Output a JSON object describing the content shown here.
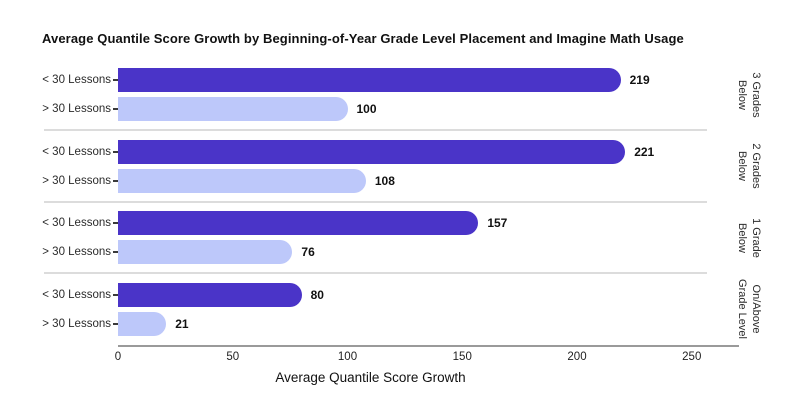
{
  "title": "Average Quantile Score Growth by Beginning-of-Year Grade Level Placement and Imagine Math Usage",
  "chart_data": {
    "type": "bar",
    "orientation": "horizontal",
    "title": "Average Quantile Score Growth by Beginning-of-Year Grade Level Placement and Imagine Math Usage",
    "xlabel": "Average Quantile Score Growth",
    "x_ticks": [
      "0",
      "50",
      "100",
      "150",
      "200",
      "250"
    ],
    "x_tick_values": [
      0,
      50,
      100,
      150,
      200,
      250
    ],
    "xlim": [
      0,
      270
    ],
    "grid": false,
    "legend": "none",
    "series": [
      {
        "name": "< 30 Lessons",
        "color": "#4A34C8",
        "values": [
          219,
          221,
          157,
          80
        ]
      },
      {
        "name": "> 30 Lessons",
        "color": "#BDC8FA",
        "values": [
          100,
          108,
          76,
          21
        ]
      }
    ],
    "categories": [
      "3 Grades Below",
      "2 Grades Below",
      "1 Grade Below",
      "On/Above Grade Level"
    ],
    "groups": [
      {
        "facet_lines": [
          "3 Grades",
          "Below"
        ],
        "bars": [
          {
            "label": "< 30 Lessons",
            "value": 219
          },
          {
            "label": "> 30 Lessons",
            "value": 100
          }
        ]
      },
      {
        "facet_lines": [
          "2 Grades",
          "Below"
        ],
        "bars": [
          {
            "label": "< 30 Lessons",
            "value": 221
          },
          {
            "label": "> 30 Lessons",
            "value": 108
          }
        ]
      },
      {
        "facet_lines": [
          "1 Grade",
          "Below"
        ],
        "bars": [
          {
            "label": "< 30 Lessons",
            "value": 157
          },
          {
            "label": "> 30 Lessons",
            "value": 76
          }
        ]
      },
      {
        "facet_lines": [
          "On/Above",
          "Grade Level"
        ],
        "bars": [
          {
            "label": "< 30 Lessons",
            "value": 80
          },
          {
            "label": "> 30 Lessons",
            "value": 21
          }
        ]
      }
    ],
    "colors": {
      "lt30": "#4A34C8",
      "gt30": "#BDC8FA"
    }
  }
}
